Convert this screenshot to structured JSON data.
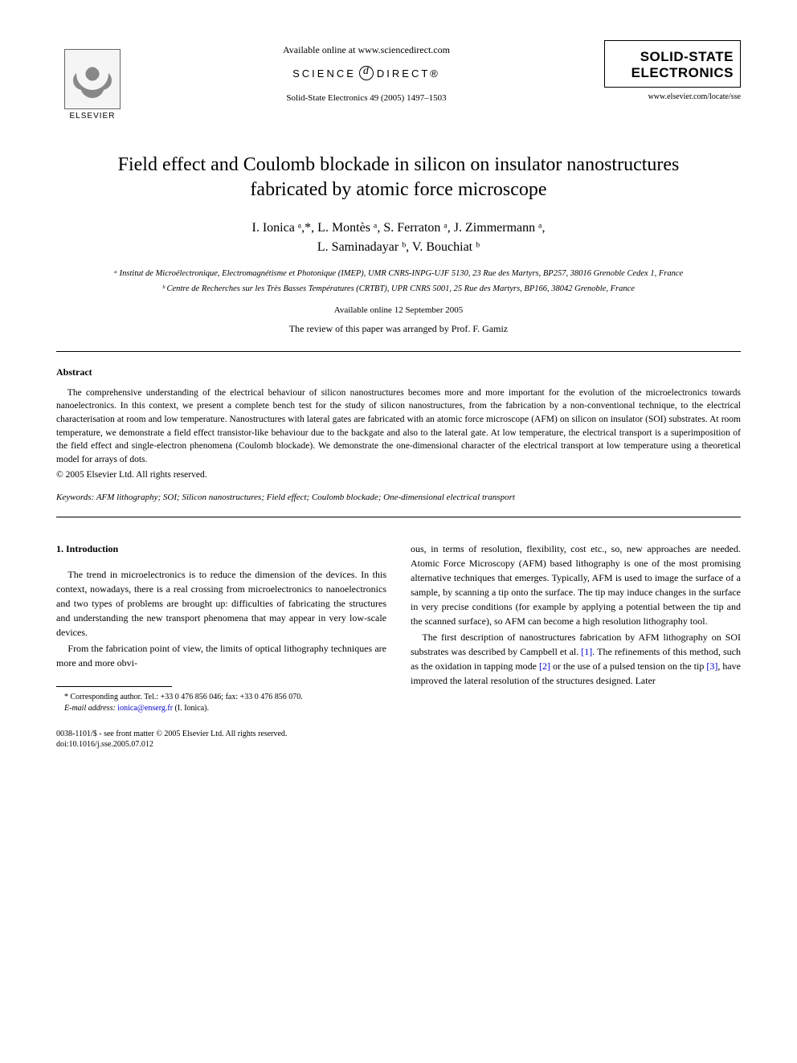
{
  "header": {
    "publisher_name": "ELSEVIER",
    "available_text": "Available online at www.sciencedirect.com",
    "sd_left": "SCIENCE",
    "sd_right": "DIRECT®",
    "citation": "Solid-State Electronics 49 (2005) 1497–1503",
    "journal_line1": "SOLID-STATE",
    "journal_line2": "ELECTRONICS",
    "journal_url": "www.elsevier.com/locate/sse"
  },
  "article": {
    "title": "Field effect and Coulomb blockade in silicon on insulator nanostructures fabricated by atomic force microscope",
    "authors_line1": "I. Ionica ᵃ,*, L. Montès ᵃ, S. Ferraton ᵃ, J. Zimmermann ᵃ,",
    "authors_line2": "L. Saminadayar ᵇ, V. Bouchiat ᵇ",
    "affiliation_a": "ᵃ Institut de Microélectronique, Electromagnétisme et Photonique (IMEP), UMR CNRS-INPG-UJF 5130, 23 Rue des Martyrs, BP257, 38016 Grenoble Cedex 1, France",
    "affiliation_b": "ᵇ Centre de Recherches sur les Très Basses Températures (CRTBT), UPR CNRS 5001, 25 Rue des Martyrs, BP166, 38042 Grenoble, France",
    "available_date": "Available online 12 September 2005",
    "review_note": "The review of this paper was arranged by Prof. F. Gamiz"
  },
  "abstract": {
    "heading": "Abstract",
    "text": "The comprehensive understanding of the electrical behaviour of silicon nanostructures becomes more and more important for the evolution of the microelectronics towards nanoelectronics. In this context, we present a complete bench test for the study of silicon nanostructures, from the fabrication by a non-conventional technique, to the electrical characterisation at room and low temperature. Nanostructures with lateral gates are fabricated with an atomic force microscope (AFM) on silicon on insulator (SOI) substrates. At room temperature, we demonstrate a field effect transistor-like behaviour due to the backgate and also to the lateral gate. At low temperature, the electrical transport is a superimposition of the field effect and single-electron phenomena (Coulomb blockade). We demonstrate the one-dimensional character of the electrical transport at low temperature using a theoretical model for arrays of dots.",
    "copyright": "© 2005 Elsevier Ltd. All rights reserved."
  },
  "keywords": {
    "label": "Keywords:",
    "list": "AFM lithography; SOI; Silicon nanostructures; Field effect; Coulomb blockade; One-dimensional electrical transport"
  },
  "body": {
    "section1_heading": "1. Introduction",
    "col1_p1": "The trend in microelectronics is to reduce the dimension of the devices. In this context, nowadays, there is a real crossing from microelectronics to nanoelectronics and two types of problems are brought up: difficulties of fabricating the structures and understanding the new transport phenomena that may appear in very low-scale devices.",
    "col1_p2": "From the fabrication point of view, the limits of optical lithography techniques are more and more obvi-",
    "col2_p1": "ous, in terms of resolution, flexibility, cost etc., so, new approaches are needed. Atomic Force Microscopy (AFM) based lithography is one of the most promising alternative techniques that emerges. Typically, AFM is used to image the surface of a sample, by scanning a tip onto the surface. The tip may induce changes in the surface in very precise conditions (for example by applying a potential between the tip and the scanned surface), so AFM can become a high resolution lithography tool.",
    "col2_p2_a": "The first description of nanostructures fabrication by AFM lithography on SOI substrates was described by Campbell et al. ",
    "ref1": "[1]",
    "col2_p2_b": ". The refinements of this method, such as the oxidation in tapping mode ",
    "ref2": "[2]",
    "col2_p2_c": " or the use of a pulsed tension on the tip ",
    "ref3": "[3]",
    "col2_p2_d": ", have improved the lateral resolution of the structures designed. Later"
  },
  "footnotes": {
    "corresponding": "* Corresponding author. Tel.: +33 0 476 856 046; fax: +33 0 476 856 070.",
    "email_label": "E-mail address:",
    "email": "ionica@enserg.fr",
    "email_name": "(I. Ionica)."
  },
  "doi": {
    "line1": "0038-1101/$ - see front matter © 2005 Elsevier Ltd. All rights reserved.",
    "line2": "doi:10.1016/j.sse.2005.07.012"
  }
}
